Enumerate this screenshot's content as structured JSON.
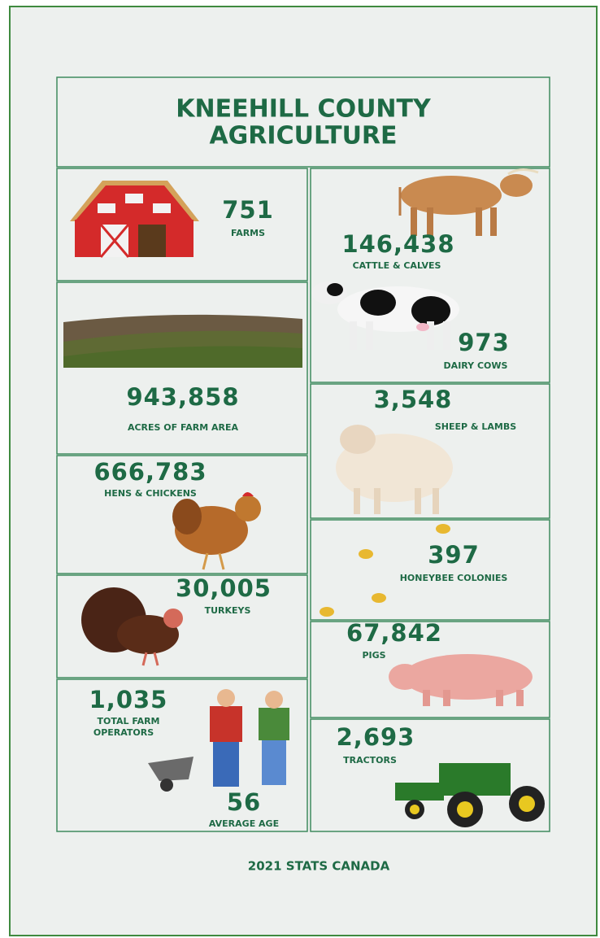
{
  "header": {
    "title_lines": [
      "KNEEHILL COUNTY",
      "AGRICULTURE"
    ]
  },
  "stats": [
    {
      "value": "751",
      "label": "FARMS"
    },
    {
      "value": "146,438",
      "label": "CATTLE & CALVES"
    },
    {
      "value": "973",
      "label": "DAIRY COWS"
    },
    {
      "value": "943,858",
      "label": "ACRES OF FARM AREA"
    },
    {
      "value": "3,548",
      "label": "SHEEP & LAMBS"
    },
    {
      "value": "666,783",
      "label": "HENS & CHICKENS"
    },
    {
      "value": "30,005",
      "label": "TURKEYS"
    },
    {
      "value": "397",
      "label": "HONEYBEE COLONIES"
    },
    {
      "value": "67,842",
      "label": "PIGS"
    },
    {
      "value": "1,035",
      "label_lines": [
        "TOTAL FARM",
        "OPERATORS"
      ]
    },
    {
      "value": "56",
      "label": "AVERAGE AGE"
    },
    {
      "value": "2,693",
      "label": "TRACTORS"
    }
  ],
  "footer": {
    "source": "2021 STATS CANADA"
  }
}
